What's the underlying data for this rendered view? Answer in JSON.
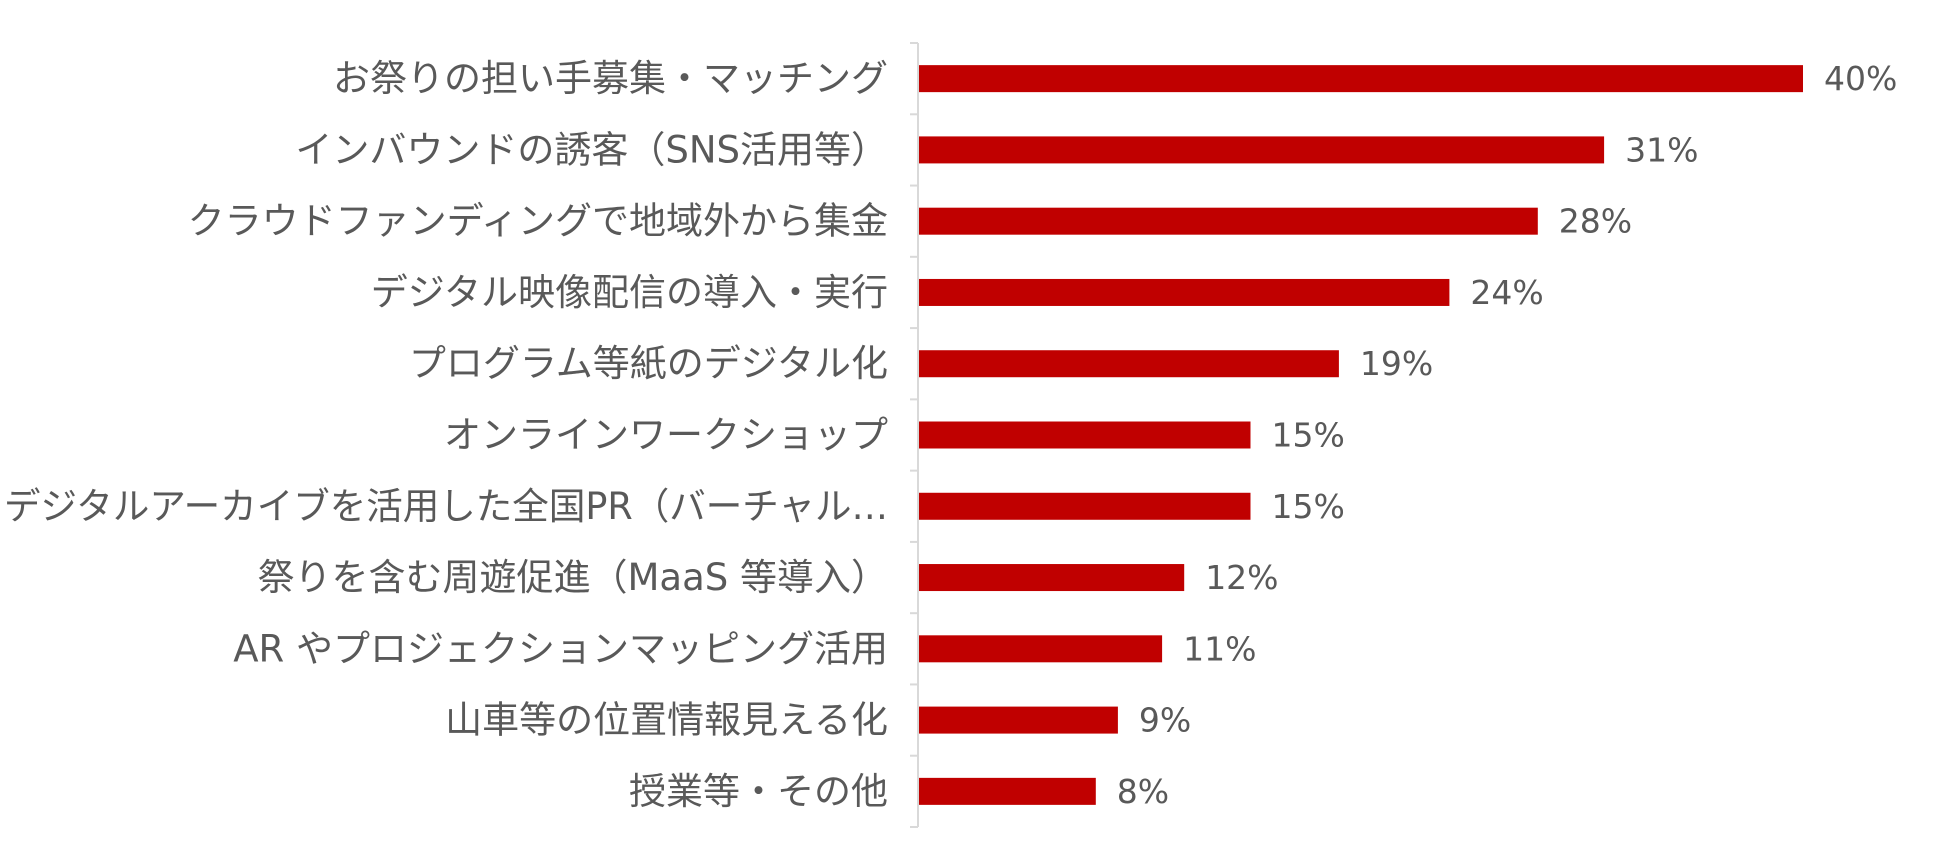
{
  "chart_data": {
    "type": "bar",
    "orientation": "horizontal",
    "categories": [
      "お祭りの担い手募集・マッチング",
      "インバウンドの誘客（SNS活用等）",
      "クラウドファンディングで地域外から集金",
      "デジタル映像配信の導入・実行",
      "プログラム等紙のデジタル化",
      "オンラインワークショップ",
      "デジタルアーカイブを活用した全国PR（バーチャル…",
      "祭りを含む周遊促進（MaaS 等導入）",
      "AR やプロジェクションマッピング活用",
      "山車等の位置情報見える化",
      "授業等・その他"
    ],
    "values": [
      40,
      31,
      28,
      24,
      19,
      15,
      15,
      12,
      11,
      9,
      8
    ],
    "data_labels": [
      "40%",
      "31%",
      "28%",
      "24%",
      "19%",
      "15%",
      "15%",
      "12%",
      "11%",
      "9%",
      "8%"
    ],
    "value_unit": "%",
    "xlim": [
      0,
      40
    ],
    "title": "",
    "xlabel": "",
    "ylabel": "",
    "grid": false,
    "legend": "none",
    "bar_color": "#c00000"
  }
}
